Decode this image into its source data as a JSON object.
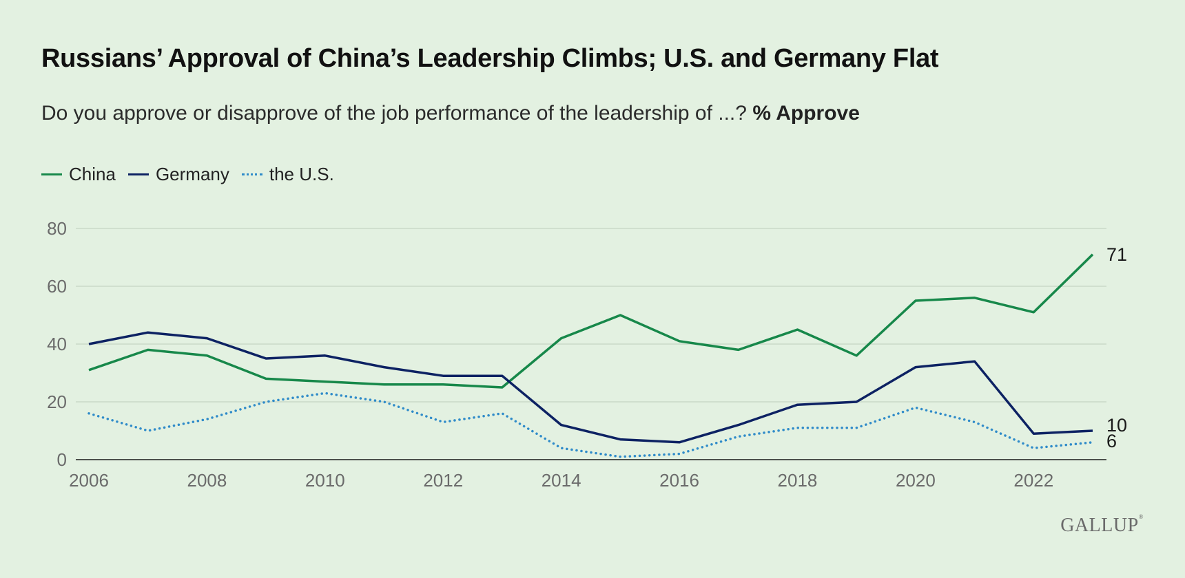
{
  "header": {
    "title": "Russians’ Approval of China’s Leadership Climbs; U.S. and Germany Flat",
    "subtitle_question": "Do you approve or disapprove of the job performance of the leadership of ...?",
    "subtitle_measure": "% Approve"
  },
  "brand": {
    "name": "GALLUP",
    "mark": "®"
  },
  "colors": {
    "background": "#e3f1e1",
    "china": "#17884a",
    "germany": "#0d2263",
    "us": "#2f8bc9",
    "grid": "#c9d9c8",
    "axis": "#1a1a1a",
    "tick_text": "#6b6b6b"
  },
  "chart_data": {
    "type": "line",
    "title": "Russians’ Approval of China’s Leadership Climbs; U.S. and Germany Flat",
    "xlabel": "",
    "ylabel": "% Approve",
    "ylim": [
      0,
      80
    ],
    "xlim": [
      2006,
      2023
    ],
    "y_ticks": [
      0,
      20,
      40,
      60,
      80
    ],
    "x_ticks": [
      2006,
      2008,
      2010,
      2012,
      2014,
      2016,
      2018,
      2020,
      2022
    ],
    "grid": true,
    "legend_position": "top-left",
    "x": [
      2006,
      2007,
      2008,
      2009,
      2010,
      2011,
      2012,
      2013,
      2014,
      2015,
      2016,
      2017,
      2018,
      2019,
      2020,
      2021,
      2022,
      2023
    ],
    "series": [
      {
        "name": "China",
        "style": "solid",
        "color": "#17884a",
        "values": [
          31,
          38,
          36,
          28,
          27,
          26,
          26,
          25,
          42,
          50,
          41,
          38,
          45,
          36,
          55,
          56,
          51,
          71
        ],
        "end_label": "71"
      },
      {
        "name": "Germany",
        "style": "solid",
        "color": "#0d2263",
        "values": [
          40,
          44,
          42,
          35,
          36,
          32,
          29,
          29,
          12,
          7,
          6,
          12,
          19,
          20,
          32,
          34,
          9,
          10
        ],
        "end_label": "10"
      },
      {
        "name": "the U.S.",
        "style": "dotted",
        "color": "#2f8bc9",
        "values": [
          16,
          10,
          14,
          20,
          23,
          20,
          13,
          16,
          4,
          1,
          2,
          8,
          11,
          11,
          18,
          13,
          4,
          6
        ],
        "end_label": "6"
      }
    ]
  }
}
